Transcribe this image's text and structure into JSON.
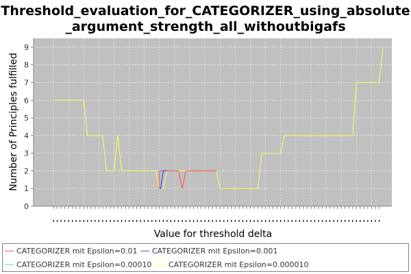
{
  "chart_data": {
    "type": "line",
    "title_lines": [
      "Threshold_evaluation_for_CATEGORIZER_using_absolute",
      "_argument_strength_all_withoutbigafs"
    ],
    "xlabel": "Value for threshold delta",
    "ylabel": "Number of Principles fulfilled",
    "ylim": [
      0,
      9.5
    ],
    "y_ticks": [
      0,
      1,
      2,
      3,
      4,
      5,
      6,
      7,
      8,
      9
    ],
    "x_ticks_count": 87,
    "x_range": [
      0,
      86
    ],
    "grid": true,
    "legend_placement": "bottom",
    "background_color": "#c0c0c0",
    "series": [
      {
        "name": "CATEGORIZER mit Epsilon=0.01",
        "color": "#ff5555",
        "points": [
          [
            28,
            1
          ],
          [
            28,
            2
          ],
          [
            31,
            2
          ],
          [
            32,
            2
          ],
          [
            33,
            2
          ],
          [
            34,
            1
          ],
          [
            35,
            2
          ],
          [
            38,
            2
          ],
          [
            43,
            2
          ]
        ]
      },
      {
        "name": "CATEGORIZER mit Epsilon=0.001",
        "color": "#5555ff",
        "points": [
          [
            28,
            1
          ],
          [
            28.3,
            1
          ],
          [
            29,
            2
          ],
          [
            30,
            2
          ]
        ]
      },
      {
        "name": "CATEGORIZER mit Epsilon=0.00010",
        "color": "#55ff55",
        "points": []
      },
      {
        "name": "CATEGORIZER mit Epsilon=0.000010",
        "color": "#ffff55",
        "points": [
          [
            0,
            6
          ],
          [
            8,
            6
          ],
          [
            9,
            4
          ],
          [
            13,
            4
          ],
          [
            14,
            2
          ],
          [
            16,
            2
          ],
          [
            17,
            4
          ],
          [
            18,
            2
          ],
          [
            27,
            2
          ],
          [
            28,
            1
          ],
          [
            29,
            1
          ],
          [
            30,
            2
          ],
          [
            43,
            2
          ],
          [
            44,
            1
          ],
          [
            54,
            1
          ],
          [
            55,
            3
          ],
          [
            60,
            3
          ],
          [
            61,
            4
          ],
          [
            79,
            4
          ],
          [
            80,
            7
          ],
          [
            86,
            7
          ],
          [
            87,
            9
          ]
        ]
      }
    ]
  }
}
